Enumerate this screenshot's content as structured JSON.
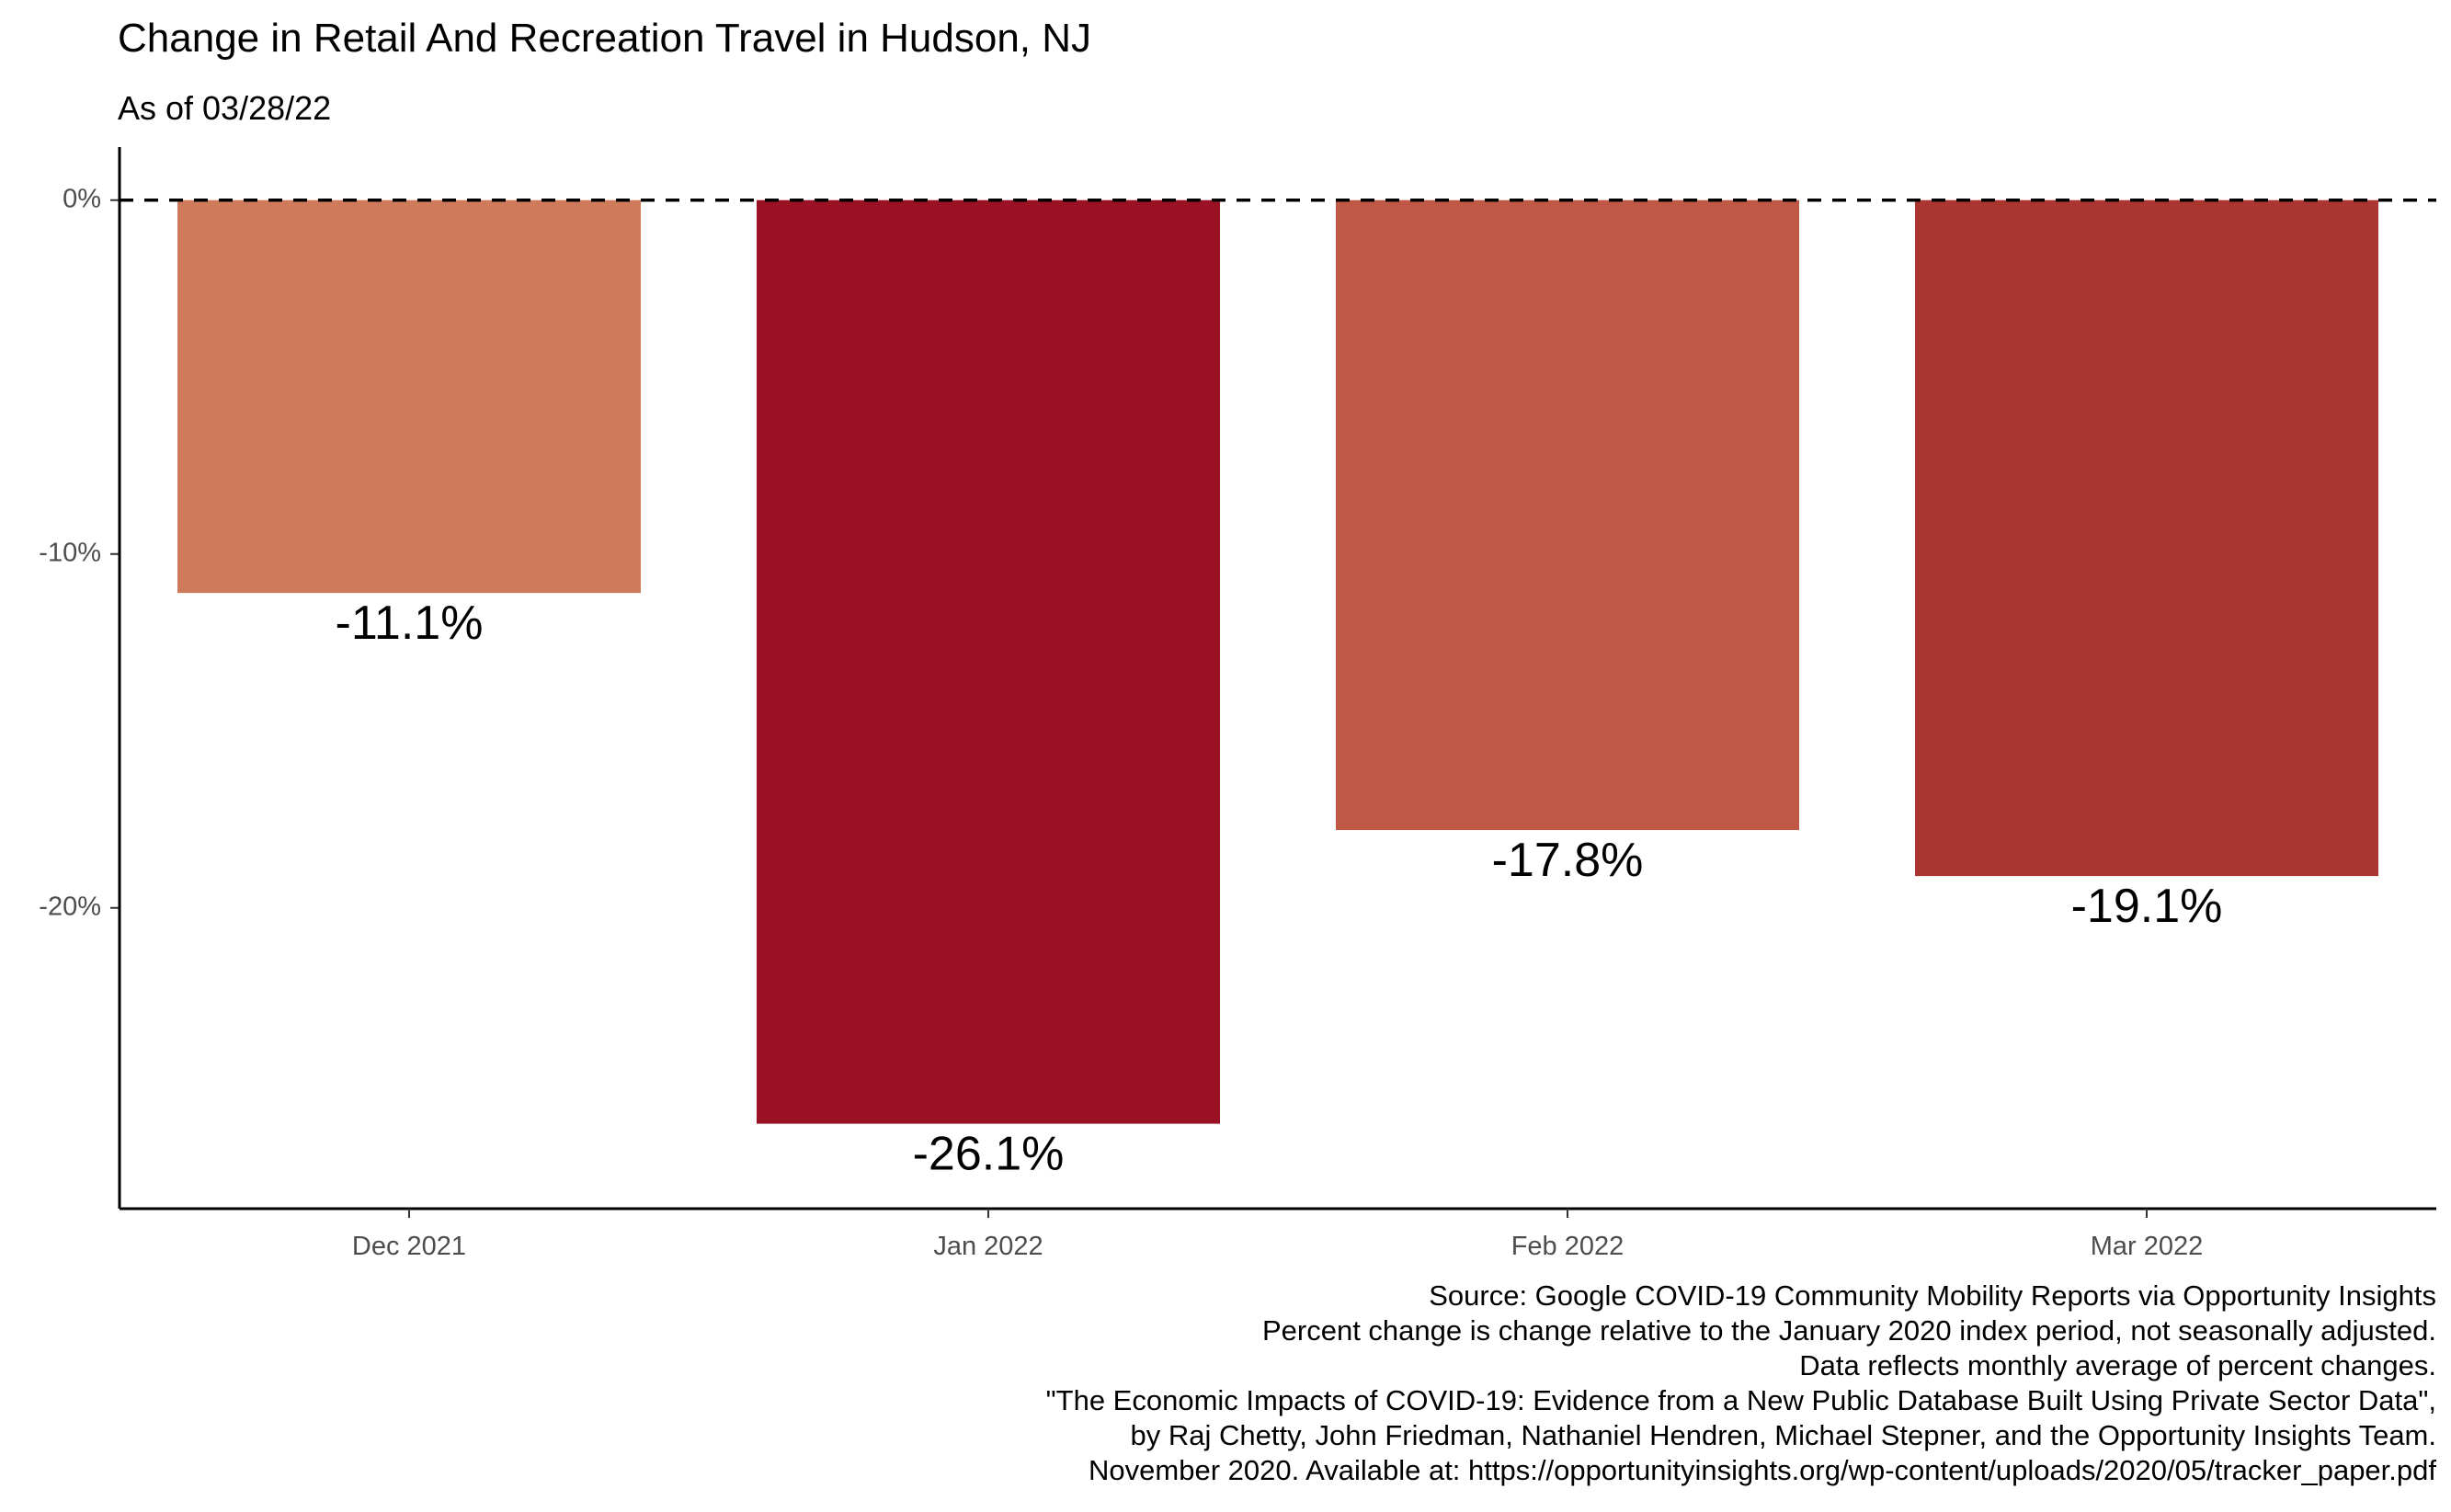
{
  "chart_data": {
    "type": "bar",
    "title": "Change in Retail And Recreation Travel in Hudson, NJ",
    "subtitle": "As of 03/28/22",
    "xlabel": "",
    "ylabel": "",
    "categories": [
      "Dec 2021",
      "Jan 2022",
      "Feb 2022",
      "Mar 2022"
    ],
    "values": [
      -11.1,
      -26.1,
      -17.8,
      -19.1
    ],
    "value_labels": [
      "-11.1%",
      "-26.1%",
      "-17.8%",
      "-19.1%"
    ],
    "colors": [
      "#CF7A5A",
      "#9A1124",
      "#BF5946",
      "#AB3531"
    ],
    "ylim": [
      -28.5,
      1.5
    ],
    "y_ticks": [
      0,
      -10,
      -20
    ],
    "y_tick_labels": [
      "0%",
      "-10%",
      "-20%"
    ],
    "reference_line": {
      "value": 0,
      "style": "dashed"
    },
    "grid": false,
    "legend": "none",
    "caption": [
      "Source: Google COVID-19 Community Mobility Reports via Opportunity Insights",
      "Percent change is change relative to the January 2020 index period, not seasonally adjusted.",
      "Data reflects monthly average of percent changes.",
      "\"The Economic Impacts of COVID-19: Evidence from a New Public Database Built Using Private Sector Data\",",
      "by Raj Chetty, John Friedman, Nathaniel Hendren, Michael Stepner, and the Opportunity Insights Team.",
      "November 2020. Available at: https://opportunityinsights.org/wp-content/uploads/2020/05/tracker_paper.pdf"
    ]
  }
}
